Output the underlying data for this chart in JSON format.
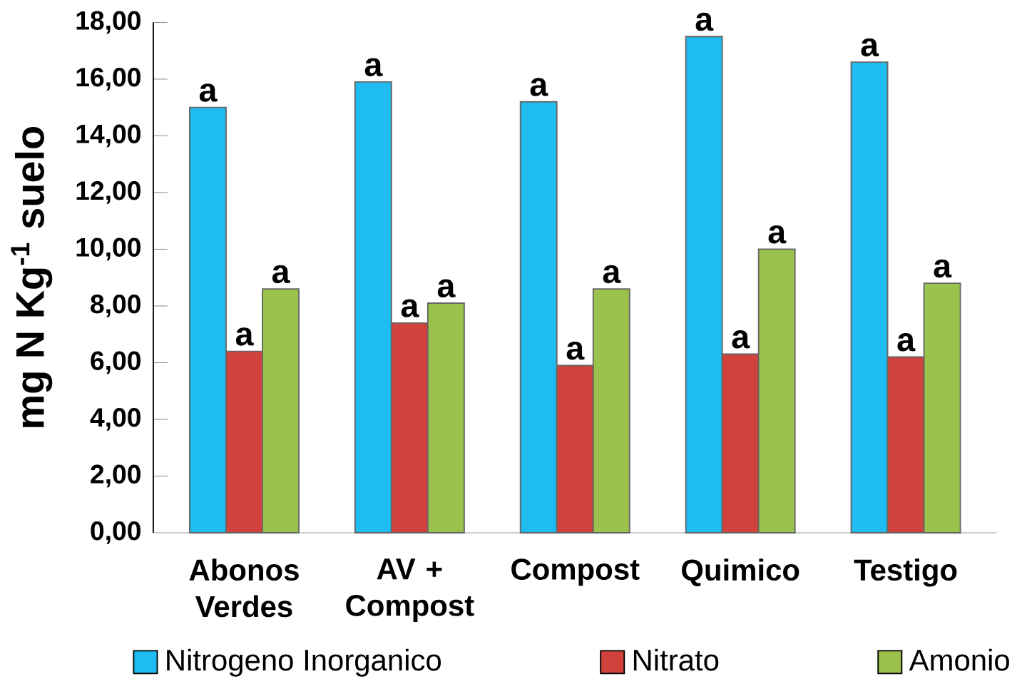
{
  "chart_data": {
    "type": "bar",
    "ylabel": "mg N Kg$^{-1}$ suelo",
    "categories": [
      "Abonos Verdes",
      "AV + Compost",
      "Compost",
      "Quimico",
      "Testigo"
    ],
    "series": [
      {
        "name": "Nitrogeno Inorganico",
        "color": "#1ebcf0",
        "values": [
          15.0,
          15.9,
          15.2,
          17.5,
          16.6
        ]
      },
      {
        "name": "Nitrato",
        "color": "#d2423c",
        "values": [
          6.4,
          7.4,
          5.9,
          6.3,
          6.2
        ]
      },
      {
        "name": "Amonio",
        "color": "#9ac24c",
        "values": [
          8.6,
          8.1,
          8.6,
          10.0,
          8.8
        ]
      }
    ],
    "ylim": [
      0,
      18
    ],
    "yticks": [
      {
        "value": 0,
        "label": "0,00"
      },
      {
        "value": 2,
        "label": "2,00"
      },
      {
        "value": 4,
        "label": "4,00"
      },
      {
        "value": 6,
        "label": "6,00"
      },
      {
        "value": 8,
        "label": "8,00"
      },
      {
        "value": 10,
        "label": "10,00"
      },
      {
        "value": 12,
        "label": "12,00"
      },
      {
        "value": 14,
        "label": "14,00"
      },
      {
        "value": 16,
        "label": "16,00"
      },
      {
        "value": 18,
        "label": "18,00"
      }
    ],
    "annotations": [
      "a",
      "a",
      "a",
      "a",
      "a",
      "a",
      "a",
      "a",
      "a",
      "a",
      "a",
      "a",
      "a",
      "a",
      "a"
    ],
    "legend": "bottom",
    "grid": false
  }
}
